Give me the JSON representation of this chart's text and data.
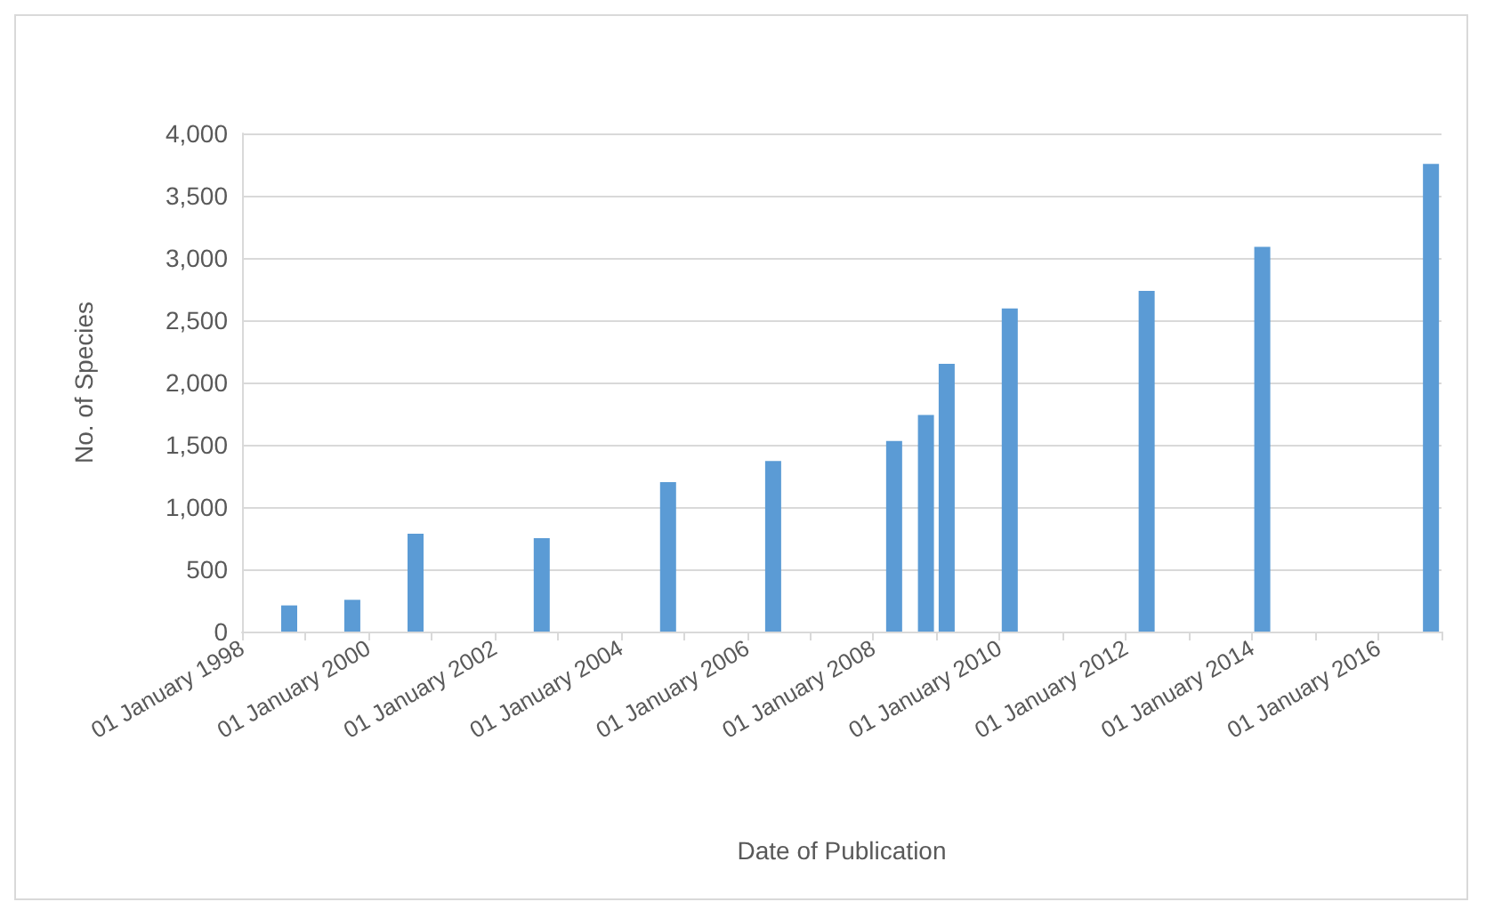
{
  "chart_data": {
    "type": "bar",
    "xlabel": "Date of Publication",
    "ylabel": "No. of Species",
    "x": [
      "1998-10",
      "1999-10",
      "2000-10",
      "2002-10",
      "2004-10",
      "2006-06",
      "2008-05",
      "2008-11",
      "2009-03",
      "2010-03",
      "2012-05",
      "2014-03",
      "2016-11"
    ],
    "series": [
      {
        "color": "#5b9bd5",
        "values": [
          210,
          255,
          785,
          750,
          1200,
          1370,
          1530,
          1740,
          2150,
          2595,
          2735,
          3090,
          3755
        ]
      }
    ],
    "xlim": [
      "1998-01-01",
      "2017-01-01"
    ],
    "xticks": [
      {
        "value": "1998-01-01",
        "label": "01 January 1998"
      },
      {
        "value": "1999-01-01",
        "label": null
      },
      {
        "value": "2000-01-01",
        "label": "01 January 2000"
      },
      {
        "value": "2001-01-01",
        "label": null
      },
      {
        "value": "2002-01-01",
        "label": "01 January 2002"
      },
      {
        "value": "2003-01-01",
        "label": null
      },
      {
        "value": "2004-01-01",
        "label": "01 January 2004"
      },
      {
        "value": "2005-01-01",
        "label": null
      },
      {
        "value": "2006-01-01",
        "label": "01 January 2006"
      },
      {
        "value": "2007-01-01",
        "label": null
      },
      {
        "value": "2008-01-01",
        "label": "01 January 2008"
      },
      {
        "value": "2009-01-01",
        "label": null
      },
      {
        "value": "2010-01-01",
        "label": "01 January 2010"
      },
      {
        "value": "2011-01-01",
        "label": null
      },
      {
        "value": "2012-01-01",
        "label": "01 January 2012"
      },
      {
        "value": "2013-01-01",
        "label": null
      },
      {
        "value": "2014-01-01",
        "label": "01 January 2014"
      },
      {
        "value": "2015-01-01",
        "label": null
      },
      {
        "value": "2016-01-01",
        "label": "01 January 2016"
      },
      {
        "value": "2017-01-01",
        "label": null
      }
    ],
    "ylim": [
      0,
      4000
    ],
    "yticks": [
      {
        "value": 0,
        "label": "0"
      },
      {
        "value": 500,
        "label": "500"
      },
      {
        "value": 1000,
        "label": "1,000"
      },
      {
        "value": 1500,
        "label": "1,500"
      },
      {
        "value": 2000,
        "label": "2,000"
      },
      {
        "value": 2500,
        "label": "2,500"
      },
      {
        "value": 3000,
        "label": "3,000"
      },
      {
        "value": 3500,
        "label": "3,500"
      },
      {
        "value": 4000,
        "label": "4,000"
      }
    ],
    "grid": "y"
  }
}
